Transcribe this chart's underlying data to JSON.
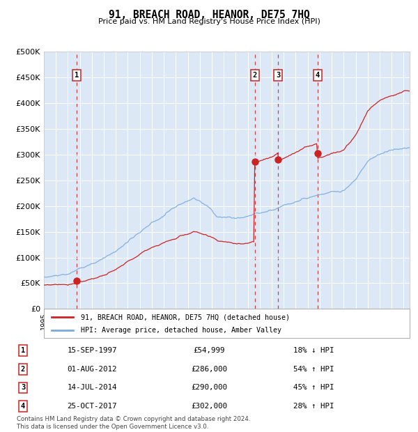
{
  "title": "91, BREACH ROAD, HEANOR, DE75 7HQ",
  "subtitle": "Price paid vs. HM Land Registry's House Price Index (HPI)",
  "bg_color": "#dce8f5",
  "hpi_color": "#7aaadd",
  "price_color": "#cc2222",
  "sale_marker_color": "#cc2222",
  "dashed_line_color": "#cc2222",
  "grid_color": "#ffffff",
  "yticks": [
    0,
    50000,
    100000,
    150000,
    200000,
    250000,
    300000,
    350000,
    400000,
    450000,
    500000
  ],
  "sales": [
    {
      "num": 1,
      "date_num": 1997.71,
      "price": 54999,
      "label": "1",
      "date_str": "15-SEP-1997",
      "pct": "18%",
      "dir": "↓"
    },
    {
      "num": 2,
      "date_num": 2012.58,
      "price": 286000,
      "label": "2",
      "date_str": "01-AUG-2012",
      "pct": "54%",
      "dir": "↑"
    },
    {
      "num": 3,
      "date_num": 2014.53,
      "price": 290000,
      "label": "3",
      "date_str": "14-JUL-2014",
      "pct": "45%",
      "dir": "↑"
    },
    {
      "num": 4,
      "date_num": 2017.81,
      "price": 302000,
      "label": "4",
      "date_str": "25-OCT-2017",
      "pct": "28%",
      "dir": "↑"
    }
  ],
  "legend_label_price": "91, BREACH ROAD, HEANOR, DE75 7HQ (detached house)",
  "legend_label_hpi": "HPI: Average price, detached house, Amber Valley",
  "footer": "Contains HM Land Registry data © Crown copyright and database right 2024.\nThis data is licensed under the Open Government Licence v3.0.",
  "xmin": 1995.0,
  "xmax": 2025.5
}
